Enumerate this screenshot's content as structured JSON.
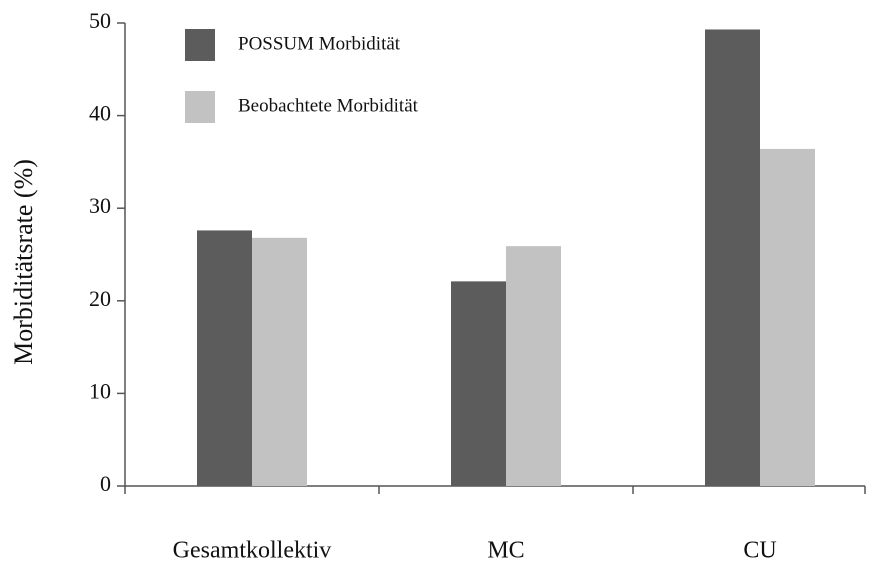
{
  "chart_data": {
    "type": "bar",
    "y_label": "Morbiditätsrate (%)",
    "categories": [
      "Gesamtkollektiv",
      "MC",
      "CU"
    ],
    "series": [
      {
        "name": "POSSUM Morbidität",
        "color": "#5c5c5c",
        "values": [
          27.6,
          22.1,
          49.3
        ]
      },
      {
        "name": "Beobachtete Morbidität",
        "color": "#c2c2c2",
        "values": [
          26.8,
          25.9,
          36.4
        ]
      }
    ],
    "ylim": [
      0,
      50
    ],
    "yticks": [
      0,
      10,
      20,
      30,
      40,
      50
    ],
    "legend": "upper left"
  }
}
